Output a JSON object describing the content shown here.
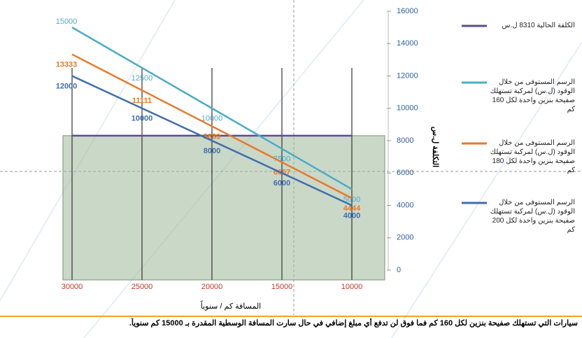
{
  "chart_data": {
    "type": "line",
    "categories": [
      "30000",
      "25000",
      "20000",
      "15000",
      "10000"
    ],
    "series": [
      {
        "name": "الكلفة الحالية 8310 ل.س",
        "color": "#5e4a94",
        "values": [
          8310,
          8310,
          8310,
          8310,
          8310
        ],
        "area": true
      },
      {
        "name": "الرسم المستوفى من خلال الوقود (ل.س) لمركبة تستهلك صفيحة بنزين واحدة لكل 160 كم",
        "color": "#4bacc6",
        "values": [
          15000,
          12500,
          10000,
          7500,
          5000
        ],
        "labels": true
      },
      {
        "name": "الرسم المستوفى من خلال الوقود (ل.س) لمركبة تستهلك صفيحة بنزين واحدة لكل 180 كم",
        "color": "#e8792a",
        "values": [
          13333,
          11111,
          8889,
          6667,
          4444
        ],
        "labels": true
      },
      {
        "name": "الرسم المستوفى من خلال الوقود (ل.س) لمركبة تستهلك صفيحة بنزين واحدة لكل 200 كم",
        "color": "#3f6fad",
        "values": [
          12000,
          10000,
          8000,
          6000,
          4000
        ],
        "labels": true
      }
    ],
    "ylim": [
      0,
      16000
    ],
    "yticks": [
      0,
      2000,
      4000,
      6000,
      8000,
      10000,
      12000,
      14000,
      16000
    ],
    "xlabel": "المسافة كم / سنوياً",
    "ylabel": "التكلفة ل.س"
  },
  "caption": "سيارات التي تستهلك صفيحة بنزين لكل 160 كم فما فوق لن تدفع أي مبلغ إضافي في حال سارت المسافة الوسطية المقدرة بـ 15000 كم سنوياً."
}
